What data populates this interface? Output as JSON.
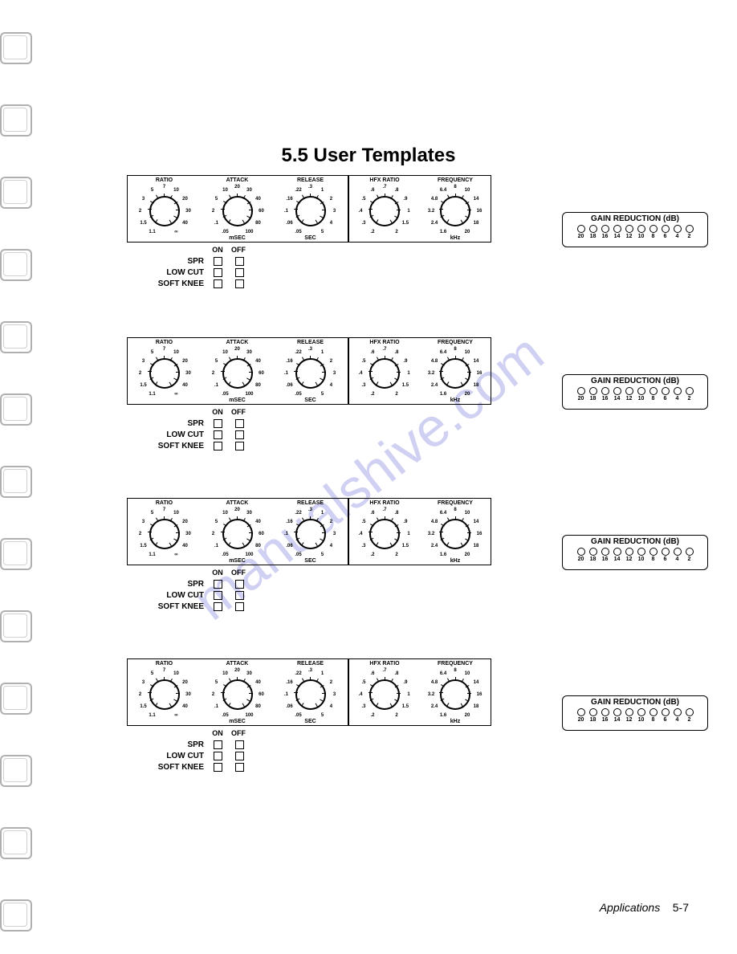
{
  "title": "5.5  User Templates",
  "watermark": "manualshive.com",
  "footer": {
    "section": "Applications",
    "page": "5-7"
  },
  "ring_positions": [
    40,
    130,
    220,
    310,
    400,
    490,
    580,
    670,
    760,
    850,
    940,
    1030,
    1120
  ],
  "row_tops": [
    218,
    420,
    620,
    820
  ],
  "knobs": [
    {
      "title": "RATIO",
      "unit": "",
      "labels": [
        "1.1",
        "1.5",
        "2",
        "3",
        "5",
        "7",
        "10",
        "20",
        "30",
        "40",
        "∞"
      ]
    },
    {
      "title": "ATTACK",
      "unit": "mSEC",
      "labels": [
        ".05",
        ".1",
        "2",
        "5",
        "10",
        "20",
        "30",
        "40",
        "60",
        "80",
        "100"
      ]
    },
    {
      "title": "RELEASE",
      "unit": "SEC",
      "labels": [
        ".05",
        ".06",
        ".1",
        ".16",
        ".22",
        ".3",
        "1",
        "2",
        "3",
        "4",
        "5"
      ]
    },
    {
      "title": "HFX RATIO",
      "unit": "",
      "labels": [
        ".2",
        ".3",
        ".4",
        ".5",
        ".6",
        ".7",
        ".8",
        ".9",
        "1",
        "1.5",
        "2"
      ]
    },
    {
      "title": "FREQUENCY",
      "unit": "kHz",
      "labels": [
        "1.6",
        "2.4",
        "3.2",
        "4.8",
        "6.4",
        "8",
        "10",
        "14",
        "16",
        "18",
        "20"
      ]
    }
  ],
  "switches": {
    "header": {
      "on": "ON",
      "off": "OFF"
    },
    "rows": [
      "SPR",
      "LOW CUT",
      "SOFT KNEE"
    ]
  },
  "gain": {
    "title": "GAIN REDUCTION (dB)",
    "values": [
      "20",
      "18",
      "16",
      "14",
      "12",
      "10",
      "8",
      "6",
      "4",
      "2"
    ]
  },
  "colors": {
    "border": "#000000",
    "bg": "#ffffff",
    "watermark": "rgba(120,120,220,0.35)"
  }
}
